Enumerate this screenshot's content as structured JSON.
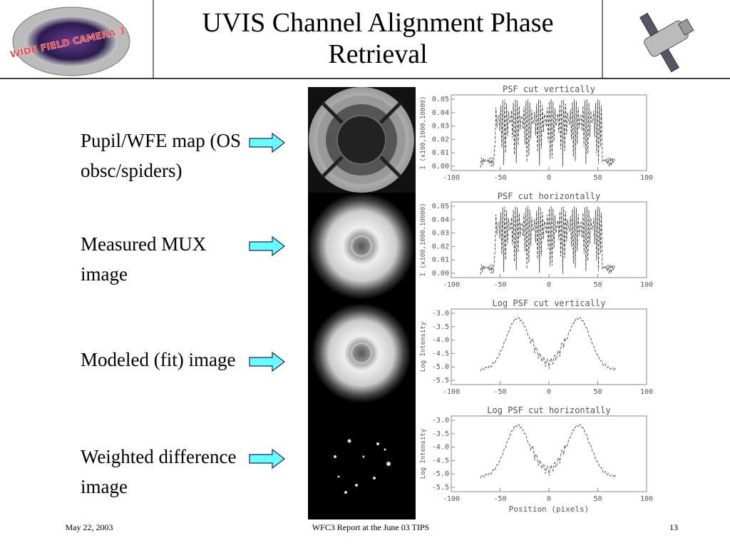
{
  "header": {
    "title": "UVIS Channel Alignment Phase Retrieval",
    "logo_text": "WIDE FIELD CAMERA 3"
  },
  "labels": [
    "Pupil/WFE map (OS obsc/spiders)",
    "Measured MUX image",
    "Modeled (fit) image",
    "Weighted difference image"
  ],
  "plots": [
    {
      "title": "PSF cut vertically",
      "y_label": "I (x100,1000,10000)",
      "y_tick_labels": [
        "0.05",
        "0.04",
        "0.03",
        "0.02",
        "0.01",
        "0.00"
      ],
      "x_tick_labels": [
        "-100",
        "-50",
        "0",
        "50",
        "100"
      ]
    },
    {
      "title": "PSF cut horizontally",
      "y_label": "I (x100,1000,10000)",
      "y_tick_labels": [
        "0.05",
        "0.04",
        "0.03",
        "0.02",
        "0.01",
        "0.00"
      ],
      "x_tick_labels": [
        "-100",
        "-50",
        "0",
        "50",
        "100"
      ]
    },
    {
      "title": "Log PSF cut vertically",
      "y_label": "Log Intensity",
      "y_tick_labels": [
        "-3.0",
        "-3.5",
        "-4.0",
        "-4.5",
        "-5.0",
        "-5.5"
      ],
      "x_tick_labels": [
        "-100",
        "-50",
        "0",
        "50",
        "100"
      ]
    },
    {
      "title": "Log PSF cut horizontally",
      "y_label": "Log Intensity",
      "y_tick_labels": [
        "-3.0",
        "-3.5",
        "-4.0",
        "-4.5",
        "-5.0",
        "-5.5"
      ],
      "x_tick_labels": [
        "-100",
        "-50",
        "0",
        "50",
        "100"
      ],
      "x_label": "Position (pixels)"
    }
  ],
  "footer": {
    "date": "May 22, 2003",
    "center": "WFC3 Report at the June 03 TIPS",
    "page": "13"
  }
}
